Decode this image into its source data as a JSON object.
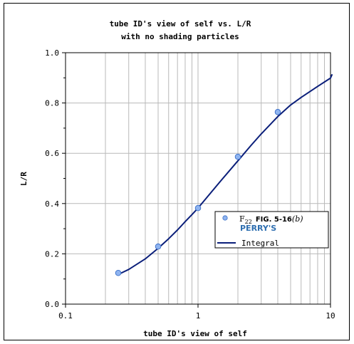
{
  "chart_data": {
    "type": "scatter",
    "title_lines": [
      "tube ID's view of self vs. L/R",
      "with no shading particles"
    ],
    "xlabel": "tube ID's view of self",
    "ylabel": "L/R",
    "x_scale": "log",
    "xlim": [
      0.1,
      10
    ],
    "ylim": [
      0.0,
      1.0
    ],
    "x_ticks": [
      {
        "value": 0.1,
        "label": "0.1"
      },
      {
        "value": 1,
        "label": "1"
      },
      {
        "value": 10,
        "label": "10"
      }
    ],
    "y_ticks": [
      {
        "value": 0.0,
        "label": "0.0"
      },
      {
        "value": 0.2,
        "label": "0.2"
      },
      {
        "value": 0.4,
        "label": "0.4"
      },
      {
        "value": 0.6,
        "label": "0.6"
      },
      {
        "value": 0.8,
        "label": "0.8"
      },
      {
        "value": 1.0,
        "label": "1.0"
      }
    ],
    "grid": true,
    "legend_position": "right",
    "series": [
      {
        "kind": "markers",
        "legend_label": {
          "sub_main": "F",
          "sub_index": "22",
          "fig": "FIG. 5-16",
          "fig_paren": "(b)",
          "source": "PERRY'S"
        },
        "color": "#8fb4f0",
        "x": [
          0.25,
          0.5,
          1.0,
          2.0,
          4.0
        ],
        "y": [
          0.124,
          0.229,
          0.382,
          0.586,
          0.764
        ]
      },
      {
        "kind": "line",
        "name": "Integral",
        "color": "#0b1f7a",
        "x": [
          0.25,
          0.3,
          0.4,
          0.5,
          0.6,
          0.7,
          0.8,
          0.9,
          1.0,
          1.2,
          1.5,
          2.0,
          2.5,
          3.0,
          4.0,
          5.0,
          6.0,
          8.0,
          10.0,
          11.0
        ],
        "y": [
          0.118,
          0.138,
          0.18,
          0.222,
          0.26,
          0.295,
          0.328,
          0.356,
          0.382,
          0.432,
          0.493,
          0.57,
          0.63,
          0.677,
          0.746,
          0.792,
          0.822,
          0.866,
          0.899,
          0.912
        ]
      }
    ]
  },
  "colors": {
    "line": "#0b1f7a",
    "marker_fill": "#8fb4f0",
    "marker_stroke": "#3a6fc8",
    "perrys": "#2f6fb0",
    "grid": "#b9b9b9",
    "axis": "#000000"
  }
}
